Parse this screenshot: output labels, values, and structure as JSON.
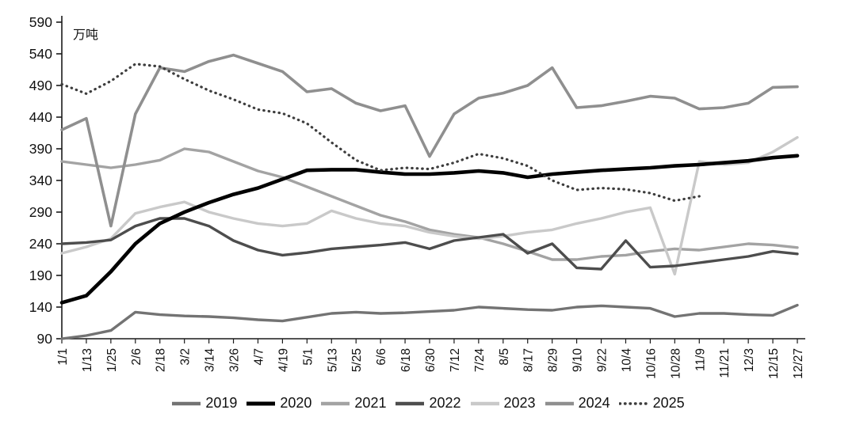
{
  "chart_data": {
    "type": "line",
    "title": "",
    "unit_label": "万吨",
    "legend_position": "bottom",
    "grid": false,
    "ylim": [
      90,
      590
    ],
    "y_ticks": [
      90,
      140,
      190,
      240,
      290,
      340,
      390,
      440,
      490,
      540,
      590
    ],
    "x_labels": [
      "1/1",
      "1/13",
      "1/25",
      "2/6",
      "2/18",
      "3/2",
      "3/14",
      "3/26",
      "4/7",
      "4/19",
      "5/1",
      "5/13",
      "5/25",
      "6/6",
      "6/18",
      "6/30",
      "7/12",
      "7/24",
      "8/5",
      "8/17",
      "8/29",
      "9/10",
      "9/22",
      "10/4",
      "10/16",
      "10/28",
      "11/9",
      "11/21",
      "12/3",
      "12/15",
      "12/27"
    ],
    "series": [
      {
        "name": "2019",
        "color": "#737373",
        "width": 3.4,
        "dash": null,
        "z": 1,
        "values": [
          90,
          95,
          103,
          132,
          128,
          126,
          125,
          123,
          120,
          118,
          124,
          130,
          132,
          130,
          131,
          133,
          135,
          140,
          138,
          136,
          135,
          140,
          142,
          140,
          138,
          125,
          130,
          130,
          128,
          127,
          143
        ]
      },
      {
        "name": "2020",
        "color": "#000000",
        "width": 4.6,
        "dash": null,
        "z": 6,
        "values": [
          147,
          158,
          196,
          240,
          272,
          290,
          305,
          318,
          328,
          342,
          356,
          357,
          357,
          353,
          350,
          350,
          352,
          355,
          352,
          345,
          350,
          353,
          356,
          358,
          360,
          363,
          365,
          368,
          371,
          376,
          379
        ]
      },
      {
        "name": "2021",
        "color": "#a3a3a3",
        "width": 3.4,
        "dash": null,
        "z": 2,
        "values": [
          370,
          365,
          360,
          365,
          372,
          390,
          385,
          370,
          355,
          345,
          330,
          315,
          300,
          285,
          275,
          262,
          255,
          250,
          240,
          228,
          215,
          215,
          220,
          222,
          228,
          232,
          230,
          235,
          240,
          238,
          234
        ]
      },
      {
        "name": "2022",
        "color": "#4d4d4d",
        "width": 3.4,
        "dash": null,
        "z": 5,
        "values": [
          240,
          242,
          246,
          268,
          280,
          280,
          268,
          245,
          230,
          222,
          226,
          232,
          235,
          238,
          242,
          232,
          245,
          250,
          255,
          225,
          240,
          202,
          200,
          245,
          203,
          205,
          210,
          215,
          220,
          228,
          224
        ]
      },
      {
        "name": "2023",
        "color": "#c9c9c9",
        "width": 3.4,
        "dash": null,
        "z": 4,
        "values": [
          225,
          235,
          248,
          288,
          298,
          306,
          290,
          280,
          272,
          268,
          272,
          292,
          280,
          272,
          268,
          258,
          252,
          248,
          252,
          258,
          262,
          272,
          280,
          290,
          297,
          192,
          370,
          365,
          368,
          385,
          408
        ]
      },
      {
        "name": "2024",
        "color": "#8f8f8f",
        "width": 3.6,
        "dash": null,
        "z": 3,
        "values": [
          420,
          438,
          268,
          445,
          518,
          512,
          528,
          538,
          525,
          512,
          480,
          485,
          462,
          450,
          458,
          378,
          445,
          470,
          478,
          490,
          518,
          455,
          458,
          465,
          473,
          470,
          453,
          455,
          462,
          487,
          488
        ]
      },
      {
        "name": "2025",
        "color": "#3d3d3d",
        "width": 3.2,
        "dash": "0.5 6",
        "z": 7,
        "values": [
          492,
          477,
          497,
          524,
          520,
          500,
          482,
          468,
          452,
          446,
          430,
          400,
          372,
          356,
          360,
          358,
          368,
          382,
          375,
          363,
          340,
          325,
          328,
          326,
          320,
          308,
          315,
          null,
          null,
          null,
          null
        ]
      }
    ]
  }
}
